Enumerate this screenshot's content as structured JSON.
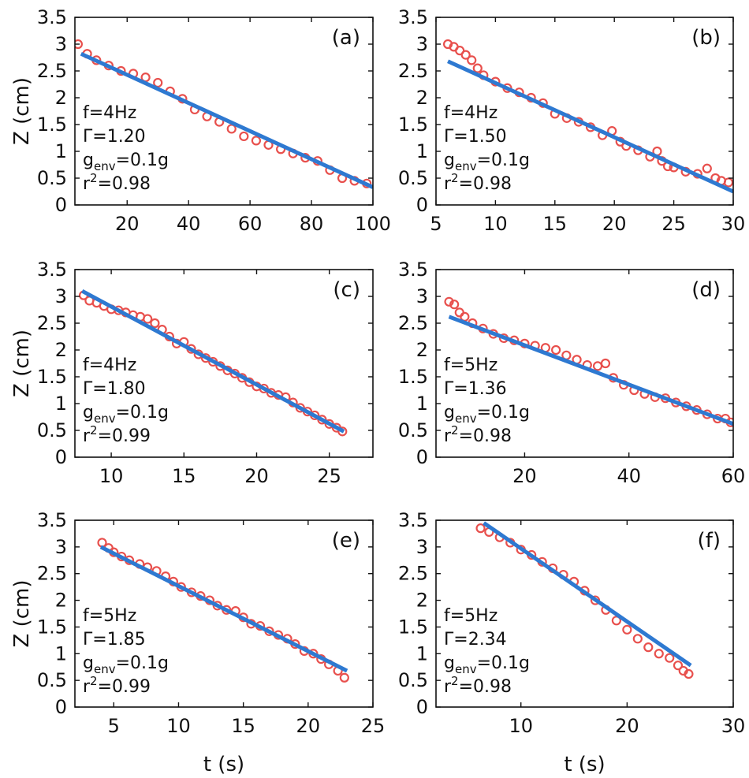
{
  "figure": {
    "ylabel": "Z (cm)",
    "xlabel": "t (s)"
  },
  "chart_data": [
    {
      "type": "scatter",
      "panel": "(a)",
      "xlim": [
        3,
        100
      ],
      "ylim": [
        0,
        3.5
      ],
      "xticks": [
        20,
        40,
        60,
        80,
        100
      ],
      "yticks": [
        0,
        0.5,
        1,
        1.5,
        2,
        2.5,
        3,
        3.5
      ],
      "xtick_labels": [
        "20",
        "40",
        "60",
        "80",
        "100"
      ],
      "ytick_labels": [
        "0",
        "0.5",
        "1",
        "1.5",
        "2",
        "2.5",
        "3",
        "3.5"
      ],
      "ylabel": "Z (cm)",
      "xlabel": "",
      "annotations": {
        "f": "f=4Hz",
        "gamma": "Γ=1.20",
        "genv_main": "g",
        "genv_sub": "env",
        "genv_rest": "=0.1g",
        "r2_main": "r",
        "r2_sup": "2",
        "r2_rest": "=0.98"
      },
      "series": [
        {
          "name": "data",
          "marker": "circle",
          "color": "#e8504d",
          "x": [
            4,
            7,
            10,
            14,
            18,
            22,
            26,
            30,
            34,
            38,
            42,
            46,
            50,
            54,
            58,
            62,
            66,
            70,
            74,
            78,
            82,
            86,
            90,
            94,
            98
          ],
          "y": [
            3.0,
            2.82,
            2.7,
            2.6,
            2.5,
            2.45,
            2.38,
            2.28,
            2.12,
            1.98,
            1.78,
            1.65,
            1.55,
            1.42,
            1.28,
            1.2,
            1.12,
            1.04,
            0.96,
            0.88,
            0.82,
            0.65,
            0.5,
            0.45,
            0.4
          ]
        },
        {
          "name": "fit",
          "type": "line",
          "color": "#2e79d1",
          "x": [
            5,
            100
          ],
          "y": [
            2.82,
            0.33
          ]
        }
      ]
    },
    {
      "type": "scatter",
      "panel": "(b)",
      "xlim": [
        5,
        30
      ],
      "ylim": [
        0,
        3.5
      ],
      "xticks": [
        5,
        10,
        15,
        20,
        25,
        30
      ],
      "yticks": [
        0,
        0.5,
        1,
        1.5,
        2,
        2.5,
        3,
        3.5
      ],
      "xtick_labels": [
        "5",
        "10",
        "15",
        "20",
        "25",
        "30"
      ],
      "ytick_labels": [
        "0",
        "0.5",
        "1",
        "1.5",
        "2",
        "2.5",
        "3",
        "3.5"
      ],
      "ylabel": "",
      "xlabel": "",
      "annotations": {
        "f": "f=4Hz",
        "gamma": "Γ=1.50",
        "genv_main": "g",
        "genv_sub": "env",
        "genv_rest": "=0.1g",
        "r2_main": "r",
        "r2_sup": "2",
        "r2_rest": "=0.98"
      },
      "series": [
        {
          "name": "data",
          "marker": "circle",
          "color": "#e8504d",
          "x": [
            6,
            6.5,
            7,
            7.5,
            8,
            8.5,
            9,
            10,
            11,
            12,
            13,
            14,
            15,
            16,
            17,
            18,
            19,
            19.8,
            20.5,
            21,
            22,
            23,
            23.6,
            24,
            24.5,
            25,
            26,
            27,
            27.8,
            28.5,
            29,
            29.6
          ],
          "y": [
            3.0,
            2.95,
            2.88,
            2.8,
            2.7,
            2.55,
            2.42,
            2.3,
            2.18,
            2.1,
            2.0,
            1.9,
            1.7,
            1.62,
            1.55,
            1.45,
            1.3,
            1.38,
            1.18,
            1.1,
            1.02,
            0.9,
            1.0,
            0.82,
            0.72,
            0.7,
            0.62,
            0.58,
            0.68,
            0.5,
            0.45,
            0.42
          ]
        },
        {
          "name": "fit",
          "type": "line",
          "color": "#2e79d1",
          "x": [
            6,
            30
          ],
          "y": [
            2.68,
            0.25
          ]
        }
      ]
    },
    {
      "type": "scatter",
      "panel": "(c)",
      "xlim": [
        7.5,
        28
      ],
      "ylim": [
        0,
        3.5
      ],
      "xticks": [
        10,
        15,
        20,
        25
      ],
      "yticks": [
        0,
        0.5,
        1,
        1.5,
        2,
        2.5,
        3,
        3.5
      ],
      "xtick_labels": [
        "10",
        "15",
        "20",
        "25"
      ],
      "ytick_labels": [
        "0",
        "0.5",
        "1",
        "1.5",
        "2",
        "2.5",
        "3",
        "3.5"
      ],
      "ylabel": "Z (cm)",
      "xlabel": "",
      "annotations": {
        "f": "f=4Hz",
        "gamma": "Γ=1.80",
        "genv_main": "g",
        "genv_sub": "env",
        "genv_rest": "=0.1g",
        "r2_main": "r",
        "r2_sup": "2",
        "r2_rest": "=0.99"
      },
      "series": [
        {
          "name": "data",
          "marker": "circle",
          "color": "#e8504d",
          "x": [
            8.1,
            8.5,
            9,
            9.5,
            10,
            10.5,
            11,
            11.5,
            12,
            12.5,
            13,
            13.5,
            14,
            14.5,
            15,
            15.5,
            16,
            16.5,
            17,
            17.5,
            18,
            18.5,
            19,
            19.5,
            20,
            20.5,
            21,
            21.5,
            22,
            22.5,
            23,
            23.5,
            24,
            24.5,
            25,
            25.5,
            25.9
          ],
          "y": [
            3.02,
            2.92,
            2.88,
            2.82,
            2.76,
            2.74,
            2.7,
            2.65,
            2.62,
            2.58,
            2.5,
            2.38,
            2.25,
            2.12,
            2.15,
            2.02,
            1.92,
            1.85,
            1.78,
            1.7,
            1.62,
            1.56,
            1.48,
            1.4,
            1.32,
            1.28,
            1.2,
            1.16,
            1.12,
            1.02,
            0.92,
            0.85,
            0.78,
            0.7,
            0.62,
            0.55,
            0.48
          ]
        },
        {
          "name": "fit",
          "type": "line",
          "color": "#2e79d1",
          "x": [
            8,
            26
          ],
          "y": [
            3.1,
            0.48
          ]
        }
      ]
    },
    {
      "type": "scatter",
      "panel": "(d)",
      "xlim": [
        3,
        60
      ],
      "ylim": [
        0,
        3.5
      ],
      "xticks": [
        20,
        40,
        60
      ],
      "yticks": [
        0,
        0.5,
        1,
        1.5,
        2,
        2.5,
        3,
        3.5
      ],
      "xtick_labels": [
        "20",
        "40",
        "60"
      ],
      "ytick_labels": [
        "0",
        "0.5",
        "1",
        "1.5",
        "2",
        "2.5",
        "3",
        "3.5"
      ],
      "ylabel": "",
      "xlabel": "",
      "annotations": {
        "f": "f=5Hz",
        "gamma": "Γ=1.36",
        "genv_main": "g",
        "genv_sub": "env",
        "genv_rest": "=0.1g",
        "r2_main": "r",
        "r2_sup": "2",
        "r2_rest": "=0.98"
      },
      "series": [
        {
          "name": "data",
          "marker": "circle",
          "color": "#e8504d",
          "x": [
            5.5,
            6.5,
            7.5,
            8.5,
            10,
            12,
            14,
            16,
            18,
            20,
            22,
            24,
            26,
            28,
            30,
            32,
            34,
            35.5,
            37,
            39,
            41,
            43,
            45,
            47,
            49,
            51,
            53,
            55,
            57,
            58.5,
            59.5
          ],
          "y": [
            2.9,
            2.85,
            2.7,
            2.62,
            2.5,
            2.4,
            2.3,
            2.22,
            2.18,
            2.12,
            2.08,
            2.04,
            2.0,
            1.9,
            1.82,
            1.72,
            1.7,
            1.75,
            1.48,
            1.35,
            1.25,
            1.18,
            1.12,
            1.1,
            1.02,
            0.95,
            0.88,
            0.8,
            0.72,
            0.72,
            0.65
          ]
        },
        {
          "name": "fit",
          "type": "line",
          "color": "#2e79d1",
          "x": [
            5.5,
            60
          ],
          "y": [
            2.62,
            0.62
          ]
        }
      ]
    },
    {
      "type": "scatter",
      "panel": "(e)",
      "xlim": [
        2,
        25
      ],
      "ylim": [
        0,
        3.5
      ],
      "xticks": [
        5,
        10,
        15,
        20,
        25
      ],
      "yticks": [
        0,
        0.5,
        1,
        1.5,
        2,
        2.5,
        3,
        3.5
      ],
      "xtick_labels": [
        "5",
        "10",
        "15",
        "20",
        "25"
      ],
      "ytick_labels": [
        "0",
        "0.5",
        "1",
        "1.5",
        "2",
        "2.5",
        "3",
        "3.5"
      ],
      "ylabel": "Z (cm)",
      "xlabel": "t (s)",
      "annotations": {
        "f": "f=5Hz",
        "gamma": "Γ=1.85",
        "genv_main": "g",
        "genv_sub": "env",
        "genv_rest": "=0.1g",
        "r2_main": "r",
        "r2_sup": "2",
        "r2_rest": "=0.99"
      },
      "series": [
        {
          "name": "data",
          "marker": "circle",
          "color": "#e8504d",
          "x": [
            4.1,
            4.6,
            5,
            5.6,
            6.2,
            7,
            7.6,
            8.3,
            9,
            9.6,
            10.2,
            11,
            11.7,
            12.4,
            13,
            13.7,
            14.4,
            15,
            15.6,
            16.3,
            17,
            17.7,
            18.4,
            19,
            19.7,
            20.4,
            21,
            21.6,
            22.3,
            22.8
          ],
          "y": [
            3.08,
            2.98,
            2.9,
            2.82,
            2.75,
            2.68,
            2.62,
            2.55,
            2.45,
            2.35,
            2.25,
            2.15,
            2.08,
            2.0,
            1.9,
            1.82,
            1.8,
            1.68,
            1.56,
            1.52,
            1.42,
            1.35,
            1.28,
            1.18,
            1.05,
            1.0,
            0.9,
            0.8,
            0.68,
            0.55
          ]
        },
        {
          "name": "fit",
          "type": "line",
          "color": "#2e79d1",
          "x": [
            4,
            23
          ],
          "y": [
            3.0,
            0.68
          ]
        }
      ]
    },
    {
      "type": "scatter",
      "panel": "(f)",
      "xlim": [
        2,
        30
      ],
      "ylim": [
        0,
        3.5
      ],
      "xticks": [
        10,
        20,
        30
      ],
      "yticks": [
        0,
        0.5,
        1,
        1.5,
        2,
        2.5,
        3,
        3.5
      ],
      "xtick_labels": [
        "10",
        "20",
        "30"
      ],
      "ytick_labels": [
        "0",
        "0.5",
        "1",
        "1.5",
        "2",
        "2.5",
        "3",
        "3.5"
      ],
      "ylabel": "",
      "xlabel": "t (s)",
      "annotations": {
        "f": "f=5Hz",
        "gamma": "Γ=2.34",
        "genv_main": "g",
        "genv_sub": "env",
        "genv_rest": "=0.1g",
        "r2_main": "r",
        "r2_sup": "2",
        "r2_rest": "=0.98"
      },
      "series": [
        {
          "name": "data",
          "marker": "circle",
          "color": "#e8504d",
          "x": [
            6.2,
            7,
            8,
            9,
            10,
            11,
            12,
            13,
            14,
            15,
            16,
            17,
            18,
            19,
            20,
            21,
            22,
            23,
            24,
            24.8,
            25.3,
            25.8
          ],
          "y": [
            3.35,
            3.28,
            3.18,
            3.08,
            2.95,
            2.85,
            2.72,
            2.6,
            2.48,
            2.35,
            2.18,
            2.0,
            1.82,
            1.62,
            1.45,
            1.28,
            1.12,
            1.0,
            0.92,
            0.78,
            0.68,
            0.62
          ]
        },
        {
          "name": "fit",
          "type": "line",
          "color": "#2e79d1",
          "x": [
            6.5,
            26
          ],
          "y": [
            3.45,
            0.78
          ]
        }
      ]
    }
  ]
}
